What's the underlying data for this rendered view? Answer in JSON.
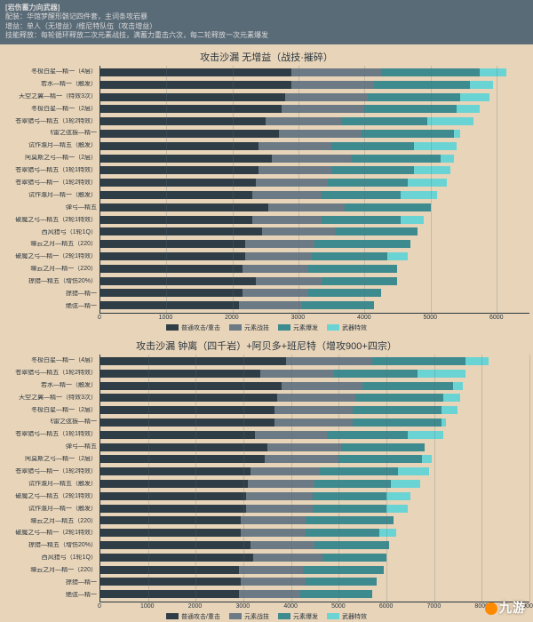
{
  "header": {
    "title": "[岩伤蓄力向武器]",
    "line1": "配装：华馆梦醒形骸记四件套，主词条攻岩暴",
    "line2": "增益：单人（无增益）/维尼特队伍（攻击增益）",
    "line3": "技能释放：每轮循环释放二次元素战技，满蓄力重击六次，每二轮释放一次元素爆发"
  },
  "colors": {
    "background": "#e8d4b8",
    "header_bg": "#5a6b78",
    "text": "#2a3640",
    "grid": "rgba(90,107,120,0.25)",
    "seg1": "#2f3e46",
    "seg2": "#6b7a85",
    "seg3": "#3d8a8f",
    "seg4": "#6ad4d4"
  },
  "legend": [
    "普通攻击/重击",
    "元素战技",
    "元素爆发",
    "武器特效"
  ],
  "chart1": {
    "title": "攻击沙漏 无增益（战技·摧碎）",
    "xmax": 6500,
    "xtick_step": 1000,
    "labels": [
      "冬极白星—精一（4层）",
      "若水—精一（触发）",
      "天空之翼—精一（特效3次）",
      "冬极白星—精一（2层）",
      "苍翠猎弓—精五（1轮2特效）",
      "飞雷之弦振—精一",
      "试作澹月—精五（触发）",
      "阿莫斯之弓—精一（2层）",
      "苍翠猎弓—精五（1轮1特效）",
      "苍翠猎弓—精一（1轮2特效）",
      "试作澹月—精一（触发）",
      "弹弓—精五",
      "破魔之弓—精五（2轮1特效）",
      "西风猎弓（1轮1Q）",
      "曚云之月—精五（220）",
      "破魔之弓—精一（2轮1特效）",
      "曚云之月—精一（220）",
      "掠猎—精五（增伤20%）",
      "掠猎—精一",
      "绝弦—精一"
    ],
    "data": [
      [
        2900,
        1350,
        1500,
        400
      ],
      [
        2900,
        1250,
        1450,
        350
      ],
      [
        2800,
        1250,
        1400,
        450
      ],
      [
        2750,
        1250,
        1400,
        350
      ],
      [
        2500,
        1150,
        1300,
        700
      ],
      [
        2700,
        1250,
        1400,
        100
      ],
      [
        2400,
        1100,
        1250,
        650
      ],
      [
        2600,
        1200,
        1350,
        200
      ],
      [
        2400,
        1100,
        1250,
        550
      ],
      [
        2350,
        1100,
        1200,
        600
      ],
      [
        2300,
        1050,
        1200,
        550
      ],
      [
        2550,
        1150,
        1300,
        0
      ],
      [
        2300,
        1050,
        1200,
        350
      ],
      [
        2450,
        1100,
        1250,
        0
      ],
      [
        2200,
        1050,
        1450,
        0
      ],
      [
        2200,
        1000,
        1150,
        300
      ],
      [
        2150,
        1000,
        1350,
        0
      ],
      [
        2350,
        1000,
        1150,
        0
      ],
      [
        2150,
        1000,
        1100,
        0
      ],
      [
        2100,
        950,
        1100,
        0
      ]
    ]
  },
  "chart2": {
    "title": "攻击沙漏 钟离（四千岩）+阿贝多+班尼特（增攻900+四宗）",
    "xmax": 9000,
    "xtick_step": 1000,
    "labels": [
      "冬极白星—精一（4层）",
      "苍翠猎弓—精五（1轮2特效）",
      "若水—精一（触发）",
      "天空之翼—精一（特效3次）",
      "冬极白星—精一（2层）",
      "飞雷之弦振—精一",
      "苍翠猎弓—精五（1轮1特效）",
      "弹弓—精五",
      "阿莫斯之弓—精一（2层）",
      "苍翠猎弓—精一（1轮2特效）",
      "试作澹月—精五（触发）",
      "破魔之弓—精五（2轮1特效）",
      "试作澹月—精一（触发）",
      "曚云之月—精五（220）",
      "破魔之弓—精一（2轮1特效）",
      "掠猎—精五（增伤20%）",
      "西风猎弓（1轮1Q）",
      "曚云之月—精一（220）",
      "掠猎—精一",
      "绝弦—精一"
    ],
    "data": [
      [
        3900,
        1800,
        1950,
        500
      ],
      [
        3350,
        1550,
        1750,
        1000
      ],
      [
        3800,
        1700,
        1900,
        200
      ],
      [
        3700,
        1650,
        1850,
        350
      ],
      [
        3650,
        1650,
        1850,
        350
      ],
      [
        3650,
        1650,
        1850,
        100
      ],
      [
        3250,
        1500,
        1700,
        750
      ],
      [
        3500,
        1550,
        1750,
        0
      ],
      [
        3450,
        1550,
        1750,
        200
      ],
      [
        3150,
        1450,
        1650,
        650
      ],
      [
        3100,
        1400,
        1600,
        600
      ],
      [
        3050,
        1400,
        1550,
        500
      ],
      [
        3050,
        1400,
        1550,
        450
      ],
      [
        2950,
        1350,
        1850,
        0
      ],
      [
        2950,
        1350,
        1550,
        350
      ],
      [
        3150,
        1350,
        1550,
        0
      ],
      [
        3200,
        1450,
        1350,
        0
      ],
      [
        2900,
        1350,
        1700,
        0
      ],
      [
        2950,
        1350,
        1500,
        0
      ],
      [
        2900,
        1300,
        1500,
        0
      ]
    ]
  },
  "watermark": "九游"
}
